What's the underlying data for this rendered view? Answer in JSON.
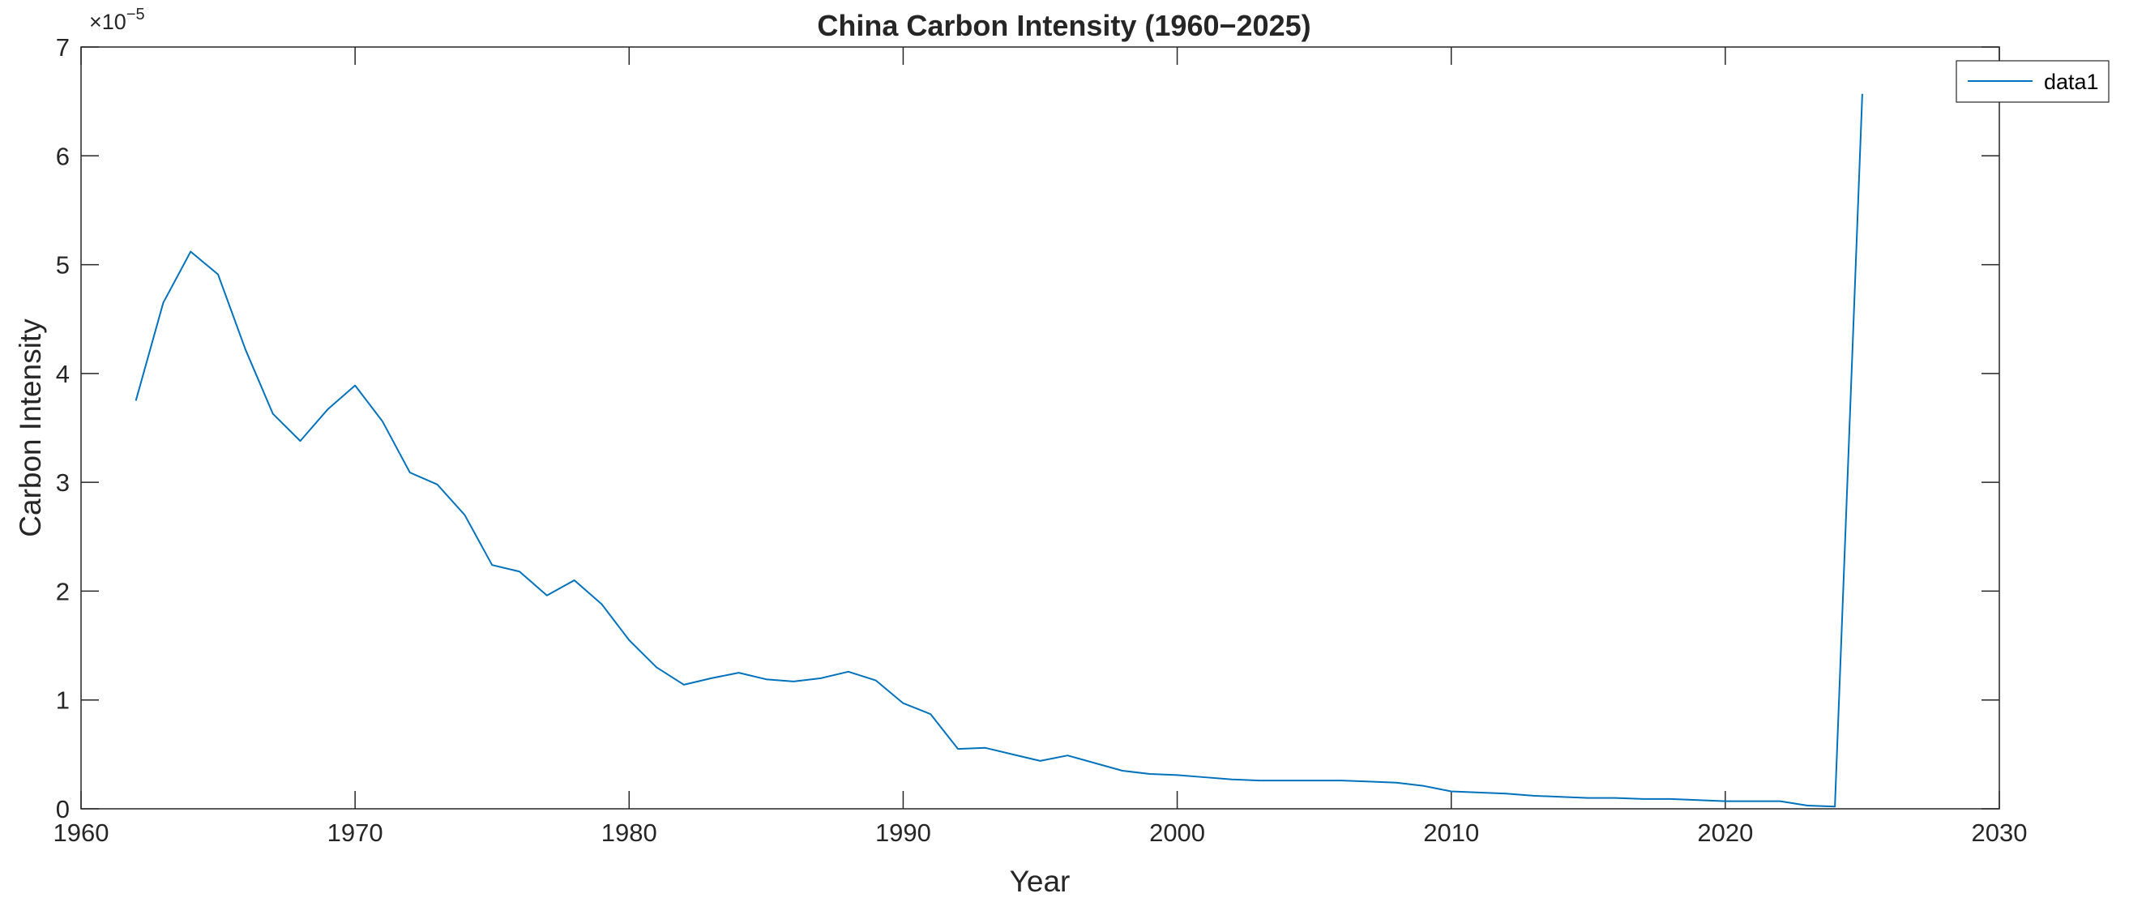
{
  "colors": {
    "series_line": "#0072BD",
    "axes": "#262626",
    "background": "#FFFFFF"
  },
  "chart_data": {
    "type": "line",
    "title": "China Carbon Intensity (1960−2025)",
    "xlabel": "Year",
    "ylabel": "Carbon Intensity",
    "y_exponent_base": "×10",
    "y_exponent_power": "−5",
    "xlim": [
      1960,
      2030
    ],
    "ylim": [
      0,
      7
    ],
    "y_scale_factor": 1e-05,
    "xticks": [
      1960,
      1970,
      1980,
      1990,
      2000,
      2010,
      2020,
      2030
    ],
    "yticks": [
      0,
      1,
      2,
      3,
      4,
      5,
      6,
      7
    ],
    "xtick_labels": [
      "1960",
      "1970",
      "1980",
      "1990",
      "2000",
      "2010",
      "2020",
      "2030"
    ],
    "ytick_labels": [
      "0",
      "1",
      "2",
      "3",
      "4",
      "5",
      "6",
      "7"
    ],
    "grid": false,
    "box": true,
    "legend": {
      "placement": "top-right",
      "entries": [
        "data1"
      ]
    },
    "series": [
      {
        "name": "data1",
        "color": "#0072BD",
        "x": [
          1962,
          1963,
          1964,
          1965,
          1966,
          1967,
          1968,
          1969,
          1970,
          1971,
          1972,
          1973,
          1974,
          1975,
          1976,
          1977,
          1978,
          1979,
          1980,
          1981,
          1982,
          1983,
          1984,
          1985,
          1986,
          1987,
          1988,
          1989,
          1990,
          1991,
          1992,
          1993,
          1994,
          1995,
          1996,
          1997,
          1998,
          1999,
          2000,
          2001,
          2002,
          2003,
          2004,
          2005,
          2006,
          2007,
          2008,
          2009,
          2010,
          2011,
          2012,
          2013,
          2014,
          2015,
          2016,
          2017,
          2018,
          2019,
          2020,
          2021,
          2022,
          2023,
          2024,
          2025
        ],
        "values": [
          3.75,
          4.65,
          5.12,
          4.91,
          4.22,
          3.63,
          3.38,
          3.67,
          3.89,
          3.56,
          3.09,
          2.98,
          2.7,
          2.24,
          2.18,
          1.96,
          2.1,
          1.88,
          1.55,
          1.3,
          1.14,
          1.2,
          1.25,
          1.19,
          1.17,
          1.2,
          1.26,
          1.18,
          0.97,
          0.87,
          0.55,
          0.56,
          0.5,
          0.44,
          0.49,
          0.42,
          0.35,
          0.32,
          0.31,
          0.29,
          0.27,
          0.26,
          0.26,
          0.26,
          0.26,
          0.25,
          0.24,
          0.21,
          0.16,
          0.15,
          0.14,
          0.12,
          0.11,
          0.1,
          0.1,
          0.09,
          0.09,
          0.08,
          0.07,
          0.07,
          0.07,
          0.03,
          0.02,
          6.57
        ]
      }
    ]
  }
}
